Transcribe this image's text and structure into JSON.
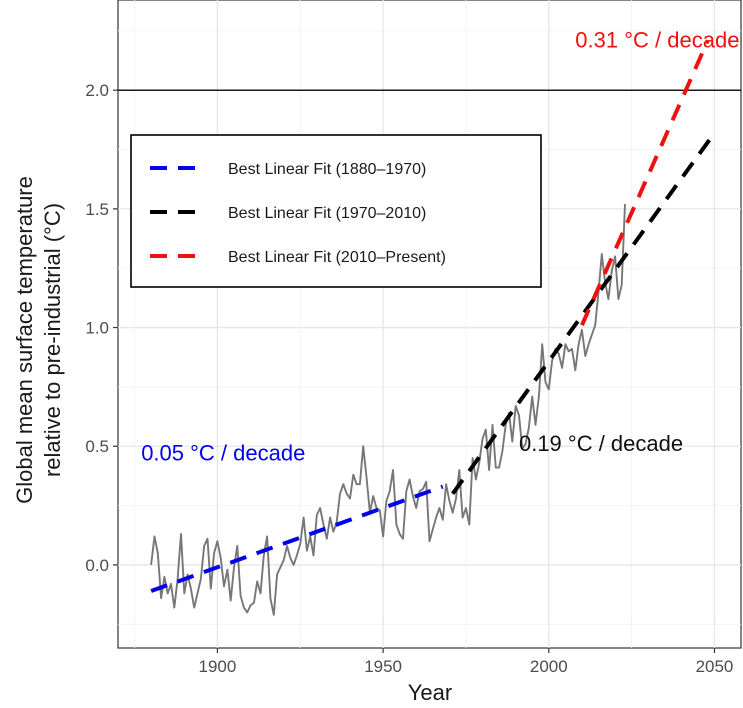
{
  "chart_data": {
    "type": "line",
    "xlabel": "Year",
    "ylabel_line1": "Global mean surface temperature",
    "ylabel_line2": "relative to pre-industrial (°C)",
    "xlim": [
      1870,
      2058
    ],
    "ylim": [
      -0.35,
      2.38
    ],
    "x_ticks": [
      1900,
      1950,
      2000,
      2050
    ],
    "x_tick_labels": [
      "1900",
      "1950",
      "2000",
      "2050"
    ],
    "y_ticks": [
      0.0,
      0.5,
      1.0,
      1.5,
      2.0
    ],
    "y_tick_labels": [
      "0.0",
      "0.5",
      "1.0",
      "1.5",
      "2.0"
    ],
    "grid": true,
    "reference_line": {
      "y": 2.0,
      "color": "#1a1a1a"
    },
    "legend": {
      "placement": "top-left",
      "entries": [
        {
          "label": "Best Linear Fit (1880–1970)",
          "color": "#0000ee"
        },
        {
          "label": "Best Linear Fit (1970–2010)",
          "color": "#000000"
        },
        {
          "label": "Best Linear Fit (2010–Present)",
          "color": "#ee1111"
        }
      ]
    },
    "fits": [
      {
        "color": "#0000ee",
        "x": [
          1880,
          1968
        ],
        "y": [
          -0.11,
          0.33
        ]
      },
      {
        "color": "#000000",
        "x": [
          1971,
          2050
        ],
        "y": [
          0.3,
          1.82
        ]
      },
      {
        "color": "#ee1111",
        "x": [
          2010,
          2048
        ],
        "y": [
          1.01,
          2.21
        ]
      }
    ],
    "annotations": [
      {
        "text": "0.05 °C  / decade",
        "x": 1877,
        "y": 0.44,
        "color": "#0000ee"
      },
      {
        "text": "0.19 °C  / decade",
        "x": 1991,
        "y": 0.48,
        "color": "#111111"
      },
      {
        "text": "0.31 °C  / decade",
        "x": 2008,
        "y": 2.18,
        "color": "#ee1111"
      }
    ],
    "series": [
      {
        "color": "#777777",
        "x": [
          1880,
          1881,
          1882,
          1883,
          1884,
          1885,
          1886,
          1887,
          1888,
          1889,
          1890,
          1891,
          1892,
          1893,
          1894,
          1895,
          1896,
          1897,
          1898,
          1899,
          1900,
          1901,
          1902,
          1903,
          1904,
          1905,
          1906,
          1907,
          1908,
          1909,
          1910,
          1911,
          1912,
          1913,
          1914,
          1915,
          1916,
          1917,
          1918,
          1919,
          1920,
          1921,
          1922,
          1923,
          1924,
          1925,
          1926,
          1927,
          1928,
          1929,
          1930,
          1931,
          1932,
          1933,
          1934,
          1935,
          1936,
          1937,
          1938,
          1939,
          1940,
          1941,
          1942,
          1943,
          1944,
          1945,
          1946,
          1947,
          1948,
          1949,
          1950,
          1951,
          1952,
          1953,
          1954,
          1955,
          1956,
          1957,
          1958,
          1959,
          1960,
          1961,
          1962,
          1963,
          1964,
          1965,
          1966,
          1967,
          1968,
          1969,
          1970,
          1971,
          1972,
          1973,
          1974,
          1975,
          1976,
          1977,
          1978,
          1979,
          1980,
          1981,
          1982,
          1983,
          1984,
          1985,
          1986,
          1987,
          1988,
          1989,
          1990,
          1991,
          1992,
          1993,
          1994,
          1995,
          1996,
          1997,
          1998,
          1999,
          2000,
          2001,
          2002,
          2003,
          2004,
          2005,
          2006,
          2007,
          2008,
          2009,
          2010,
          2011,
          2012,
          2013,
          2014,
          2015,
          2016,
          2017,
          2018,
          2019,
          2020,
          2021,
          2022,
          2023
        ],
        "y": [
          0.0,
          0.12,
          0.05,
          -0.14,
          -0.05,
          -0.12,
          -0.08,
          -0.18,
          -0.06,
          0.13,
          -0.12,
          -0.04,
          -0.1,
          -0.18,
          -0.12,
          -0.06,
          0.08,
          0.11,
          -0.1,
          0.05,
          0.1,
          0.03,
          -0.09,
          -0.02,
          -0.15,
          -0.01,
          0.08,
          -0.13,
          -0.18,
          -0.2,
          -0.17,
          -0.16,
          -0.07,
          -0.12,
          0.04,
          0.12,
          -0.14,
          -0.21,
          -0.04,
          -0.01,
          0.02,
          0.08,
          0.03,
          0.0,
          0.04,
          0.09,
          0.2,
          0.06,
          0.12,
          0.04,
          0.21,
          0.24,
          0.17,
          0.11,
          0.2,
          0.14,
          0.18,
          0.3,
          0.34,
          0.3,
          0.28,
          0.38,
          0.34,
          0.34,
          0.5,
          0.37,
          0.22,
          0.29,
          0.24,
          0.23,
          0.12,
          0.27,
          0.31,
          0.4,
          0.17,
          0.13,
          0.11,
          0.31,
          0.36,
          0.29,
          0.24,
          0.31,
          0.32,
          0.35,
          0.1,
          0.15,
          0.2,
          0.24,
          0.19,
          0.34,
          0.27,
          0.22,
          0.28,
          0.4,
          0.2,
          0.24,
          0.17,
          0.45,
          0.36,
          0.43,
          0.53,
          0.57,
          0.4,
          0.59,
          0.41,
          0.41,
          0.48,
          0.59,
          0.64,
          0.52,
          0.67,
          0.63,
          0.49,
          0.51,
          0.58,
          0.71,
          0.59,
          0.71,
          0.93,
          0.77,
          0.74,
          0.86,
          0.91,
          0.89,
          0.83,
          0.93,
          0.9,
          0.91,
          0.82,
          0.93,
          0.99,
          0.88,
          0.93,
          0.97,
          1.01,
          1.15,
          1.31,
          1.19,
          1.12,
          1.24,
          1.3,
          1.12,
          1.18,
          1.52
        ]
      }
    ]
  }
}
